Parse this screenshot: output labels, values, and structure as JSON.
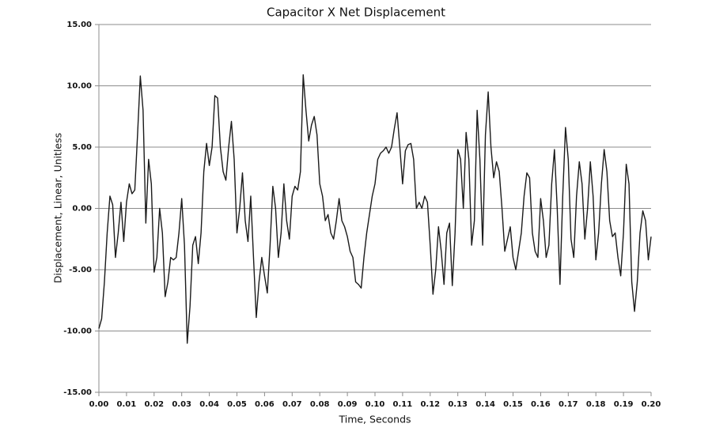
{
  "chart_data": {
    "type": "line",
    "title": "Capacitor X Net Displacement",
    "x_label": "Time, Seconds",
    "y_label": "Displacement, Linear, Unitless",
    "color": "#1a1a1a",
    "grid": true,
    "xlim": [
      0,
      0.2
    ],
    "ylim": [
      -15,
      15
    ],
    "xticks": [
      {
        "value": 0,
        "label": "0.00"
      },
      {
        "value": 0.01,
        "label": "0.01"
      },
      {
        "value": 0.02,
        "label": "0.02"
      },
      {
        "value": 0.03,
        "label": "0.03"
      },
      {
        "value": 0.04,
        "label": "0.04"
      },
      {
        "value": 0.05,
        "label": "0.05"
      },
      {
        "value": 0.06,
        "label": "0.06"
      },
      {
        "value": 0.07,
        "label": "0.07"
      },
      {
        "value": 0.08,
        "label": "0.08"
      },
      {
        "value": 0.09,
        "label": "0.09"
      },
      {
        "value": 0.1,
        "label": "0.10"
      },
      {
        "value": 0.11,
        "label": "0.11"
      },
      {
        "value": 0.12,
        "label": "0.12"
      },
      {
        "value": 0.13,
        "label": "0.13"
      },
      {
        "value": 0.14,
        "label": "0.14"
      },
      {
        "value": 0.15,
        "label": "0.15"
      },
      {
        "value": 0.16,
        "label": "0.16"
      },
      {
        "value": 0.17,
        "label": "0.17"
      },
      {
        "value": 0.18,
        "label": "0.18"
      },
      {
        "value": 0.19,
        "label": "0.19"
      },
      {
        "value": 0.2,
        "label": "0.20"
      }
    ],
    "yticks": [
      {
        "value": -15,
        "label": "-15.00"
      },
      {
        "value": -10,
        "label": "-10.00"
      },
      {
        "value": -5,
        "label": "-5.00"
      },
      {
        "value": 0,
        "label": "0.00"
      },
      {
        "value": 5,
        "label": "5.00"
      },
      {
        "value": 10,
        "label": "10.00"
      },
      {
        "value": 15,
        "label": "15.00"
      }
    ],
    "x": [
      0,
      0.001,
      0.002,
      0.003,
      0.004,
      0.005,
      0.006,
      0.007,
      0.008,
      0.009,
      0.01,
      0.011,
      0.012,
      0.013,
      0.014,
      0.015,
      0.016,
      0.017,
      0.018,
      0.019,
      0.02,
      0.021,
      0.022,
      0.023,
      0.024,
      0.025,
      0.026,
      0.027,
      0.028,
      0.029,
      0.03,
      0.031,
      0.032,
      0.033,
      0.034,
      0.035,
      0.036,
      0.037,
      0.038,
      0.039,
      0.04,
      0.041,
      0.042,
      0.043,
      0.044,
      0.045,
      0.046,
      0.047,
      0.048,
      0.049,
      0.05,
      0.051,
      0.052,
      0.053,
      0.054,
      0.055,
      0.056,
      0.057,
      0.058,
      0.059,
      0.06,
      0.061,
      0.062,
      0.063,
      0.064,
      0.065,
      0.066,
      0.067,
      0.068,
      0.069,
      0.07,
      0.071,
      0.072,
      0.073,
      0.074,
      0.075,
      0.076,
      0.077,
      0.078,
      0.079,
      0.08,
      0.081,
      0.082,
      0.083,
      0.084,
      0.085,
      0.086,
      0.087,
      0.088,
      0.089,
      0.09,
      0.091,
      0.092,
      0.093,
      0.094,
      0.095,
      0.096,
      0.097,
      0.098,
      0.099,
      0.1,
      0.101,
      0.102,
      0.103,
      0.104,
      0.105,
      0.106,
      0.107,
      0.108,
      0.109,
      0.11,
      0.111,
      0.112,
      0.113,
      0.114,
      0.115,
      0.116,
      0.117,
      0.118,
      0.119,
      0.12,
      0.121,
      0.122,
      0.123,
      0.124,
      0.125,
      0.126,
      0.127,
      0.128,
      0.129,
      0.13,
      0.131,
      0.132,
      0.133,
      0.134,
      0.135,
      0.136,
      0.137,
      0.138,
      0.139,
      0.14,
      0.141,
      0.142,
      0.143,
      0.144,
      0.145,
      0.146,
      0.147,
      0.148,
      0.149,
      0.15,
      0.151,
      0.152,
      0.153,
      0.154,
      0.155,
      0.156,
      0.157,
      0.158,
      0.159,
      0.16,
      0.161,
      0.162,
      0.163,
      0.164,
      0.165,
      0.166,
      0.167,
      0.168,
      0.169,
      0.17,
      0.171,
      0.172,
      0.173,
      0.174,
      0.175,
      0.176,
      0.177,
      0.178,
      0.179,
      0.18,
      0.181,
      0.182,
      0.183,
      0.184,
      0.185,
      0.186,
      0.187,
      0.188,
      0.189,
      0.19,
      0.191,
      0.192,
      0.193,
      0.194,
      0.195,
      0.196,
      0.197,
      0.198,
      0.199,
      0.2
    ],
    "values": [
      -9.8,
      -9,
      -6,
      -2,
      1,
      0.3,
      -4,
      -2,
      0.5,
      -2.7,
      0.5,
      2,
      1.2,
      1.5,
      6,
      10.8,
      8,
      -1.2,
      4,
      2,
      -5.2,
      -4,
      0,
      -2,
      -7.2,
      -6,
      -4,
      -4.2,
      -4,
      -2,
      0.8,
      -3,
      -11,
      -8,
      -3,
      -2.3,
      -4.5,
      -2,
      3,
      5.3,
      3.5,
      5,
      9.2,
      9,
      5,
      3,
      2.3,
      5,
      7.1,
      4,
      -2,
      0,
      2.9,
      -1,
      -2.7,
      1,
      -4,
      -8.9,
      -6,
      -4,
      -5.5,
      -6.9,
      -3,
      1.8,
      0,
      -4,
      -2,
      2,
      -1,
      -2.5,
      1,
      1.8,
      1.5,
      3,
      10.9,
      8,
      5.5,
      6.8,
      7.5,
      6,
      2,
      1,
      -1,
      -0.5,
      -2,
      -2.5,
      -1,
      0.8,
      -1,
      -1.5,
      -2.3,
      -3.5,
      -4,
      -6,
      -6.2,
      -6.5,
      -4,
      -2,
      -0.5,
      1,
      2,
      4,
      4.5,
      4.7,
      5,
      4.5,
      5,
      6.5,
      7.8,
      5,
      2,
      4.7,
      5.2,
      5.3,
      4,
      0,
      0.5,
      0,
      1,
      0.5,
      -3,
      -7,
      -5,
      -1.5,
      -3.5,
      -6.2,
      -2,
      -1.2,
      -6.3,
      -2,
      4.8,
      4,
      0,
      6.2,
      4,
      -3,
      -1,
      8,
      4,
      -3,
      6,
      9.5,
      5,
      2.5,
      3.8,
      3,
      0,
      -3.5,
      -2.5,
      -1.5,
      -4,
      -5,
      -3.5,
      -2,
      1,
      2.9,
      2.5,
      -2,
      -3.5,
      -4,
      0.8,
      -1,
      -4,
      -3,
      2,
      4.8,
      0,
      -6.2,
      1,
      6.6,
      4,
      -2.5,
      -4,
      1,
      3.8,
      2,
      -2.5,
      0,
      3.8,
      1,
      -4.2,
      -2,
      2,
      4.8,
      3,
      -1,
      -2.3,
      -2,
      -4,
      -5.5,
      -2,
      3.6,
      2,
      -6,
      -8.4,
      -6,
      -2,
      -0.2,
      -1,
      -4.2,
      -2.3
    ]
  }
}
